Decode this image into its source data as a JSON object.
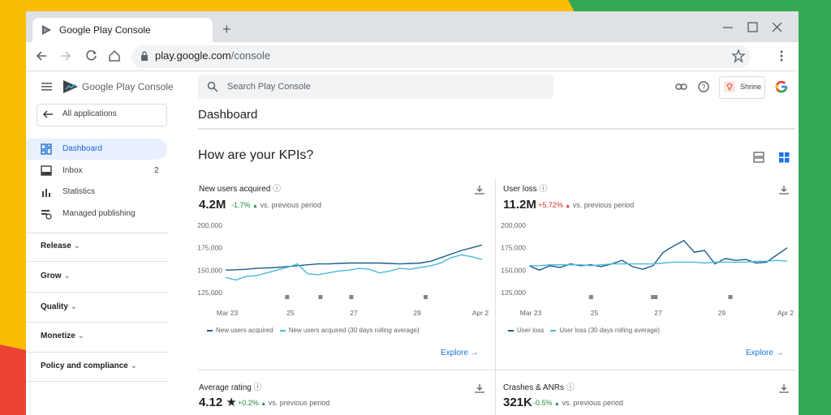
{
  "browser": {
    "tab_title": "Google Play Console",
    "url_host": "play.google.com",
    "url_path": "/console"
  },
  "sidebar": {
    "app_name": "Google Play Console",
    "back_button": "All applications",
    "nav": [
      {
        "label": "Dashboard"
      },
      {
        "label": "Inbox",
        "badge": 2
      },
      {
        "label": "Statistics"
      },
      {
        "label": "Managed publishing"
      }
    ],
    "sections": [
      "Release",
      "Grow",
      "Quality",
      "Monetize",
      "Policy and compliance"
    ]
  },
  "header": {
    "search_placeholder": "Search Play Console",
    "account": "Shrine",
    "page_title": "Dashboard"
  },
  "kpis": {
    "heading": "How are your KPIs?",
    "cards": [
      {
        "title": "New users acquired",
        "value": "4.2M",
        "change": "-1.7%",
        "comparison": "vs. previous period",
        "link": "Explore"
      },
      {
        "title": "User loss",
        "value": "11.2M",
        "change": "+5.72%",
        "comparison": "vs. previous period",
        "link": "Explore"
      },
      {
        "title": "Average rating",
        "value": "4.12",
        "change": "+0.2%",
        "comparison": "vs. previous period"
      },
      {
        "title": "Crashes & ANRs",
        "value": "321K",
        "change": "-0.5%",
        "comparison": "vs. previous period"
      }
    ]
  },
  "chart_data": [
    {
      "type": "line",
      "xticks": [
        "Mar 23",
        "25",
        "27",
        "29",
        "Apr 2"
      ],
      "ylim": [
        125000,
        200000
      ],
      "yticks": [
        {
          "value": 125000,
          "label": "125,000"
        },
        {
          "value": 150000,
          "label": "150,000"
        },
        {
          "value": 175000,
          "label": "175,000"
        },
        {
          "value": 200000,
          "label": "200,000"
        }
      ],
      "series": [
        {
          "name": "New users acquired",
          "color": "#1b5e8c",
          "values": [
            150000,
            150500,
            151000,
            152000,
            152500,
            153000,
            154000,
            155000,
            156000,
            157000,
            157000,
            157500,
            158000,
            158000,
            158000,
            158000,
            157500,
            157000,
            157500,
            158000,
            160000,
            164000,
            168000,
            172000,
            175000,
            178000
          ]
        },
        {
          "name": "New users acquired (30 days rolling average)",
          "color": "#4bb8dc",
          "values": [
            142000,
            139000,
            143000,
            144000,
            147000,
            150000,
            153000,
            157000,
            146000,
            145000,
            147000,
            149000,
            150000,
            152000,
            151000,
            147000,
            149000,
            152000,
            151000,
            153000,
            155000,
            158000,
            164000,
            167000,
            165000,
            162000
          ]
        }
      ]
    },
    {
      "type": "line",
      "xticks": [
        "Mar 23",
        "25",
        "27",
        "29",
        "Apr 2"
      ],
      "ylim": [
        125000,
        200000
      ],
      "yticks": [
        {
          "value": 125000,
          "label": "125,000"
        },
        {
          "value": 150000,
          "label": "150,000"
        },
        {
          "value": 175000,
          "label": "175,000"
        },
        {
          "value": 200000,
          "label": "200,000"
        }
      ],
      "series": [
        {
          "name": "User loss",
          "color": "#1b5e8c",
          "values": [
            155000,
            150000,
            155000,
            153000,
            157000,
            155000,
            156000,
            154000,
            157000,
            161000,
            154000,
            151000,
            155000,
            170000,
            177000,
            183000,
            170000,
            172000,
            157000,
            163000,
            161000,
            162000,
            158000,
            159000,
            167000,
            175000
          ]
        },
        {
          "name": "User loss (30 days rolling average)",
          "color": "#4bb8dc",
          "values": [
            155000,
            155000,
            156000,
            156000,
            156000,
            156000,
            155000,
            156000,
            157000,
            157000,
            157000,
            157000,
            157000,
            158000,
            159000,
            159000,
            159000,
            158000,
            159000,
            159000,
            159000,
            159000,
            160000,
            160000,
            161000,
            160000
          ]
        }
      ]
    }
  ]
}
